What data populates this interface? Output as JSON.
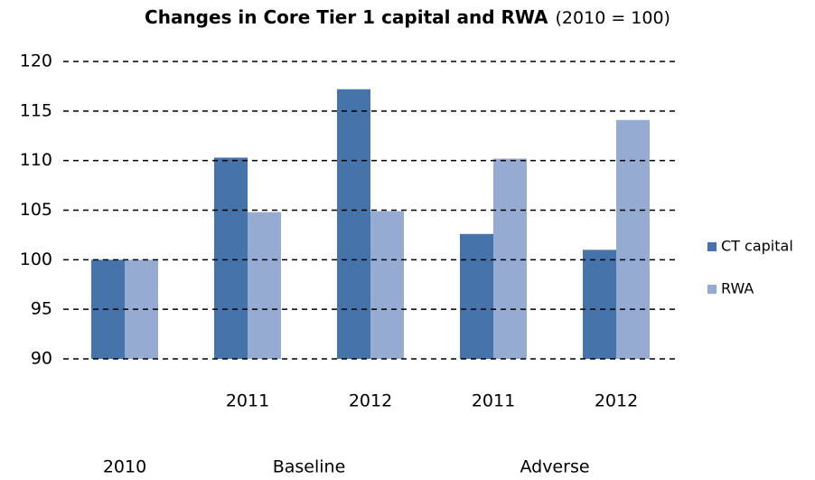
{
  "chart_data": {
    "type": "bar",
    "title": "Changes in Core Tier 1 capital and RWA",
    "subtitle": "(2010 = 100)",
    "categories": [
      null,
      "2011",
      "2012",
      "2011",
      "2012"
    ],
    "category_groups": [
      "2010",
      "Baseline",
      "Baseline",
      "Adverse",
      "Adverse"
    ],
    "series": [
      {
        "name": "CT capital",
        "color": "#4674aa",
        "values": [
          100,
          110.3,
          117.2,
          102.6,
          101
        ]
      },
      {
        "name": "RWA",
        "color": "#95abd2",
        "values": [
          100,
          104.8,
          104.9,
          110.2,
          114.1
        ]
      }
    ],
    "ylim": [
      90,
      120
    ],
    "yticks": [
      90,
      95,
      100,
      105,
      110,
      115,
      120
    ],
    "grid": true,
    "legend": "right"
  }
}
